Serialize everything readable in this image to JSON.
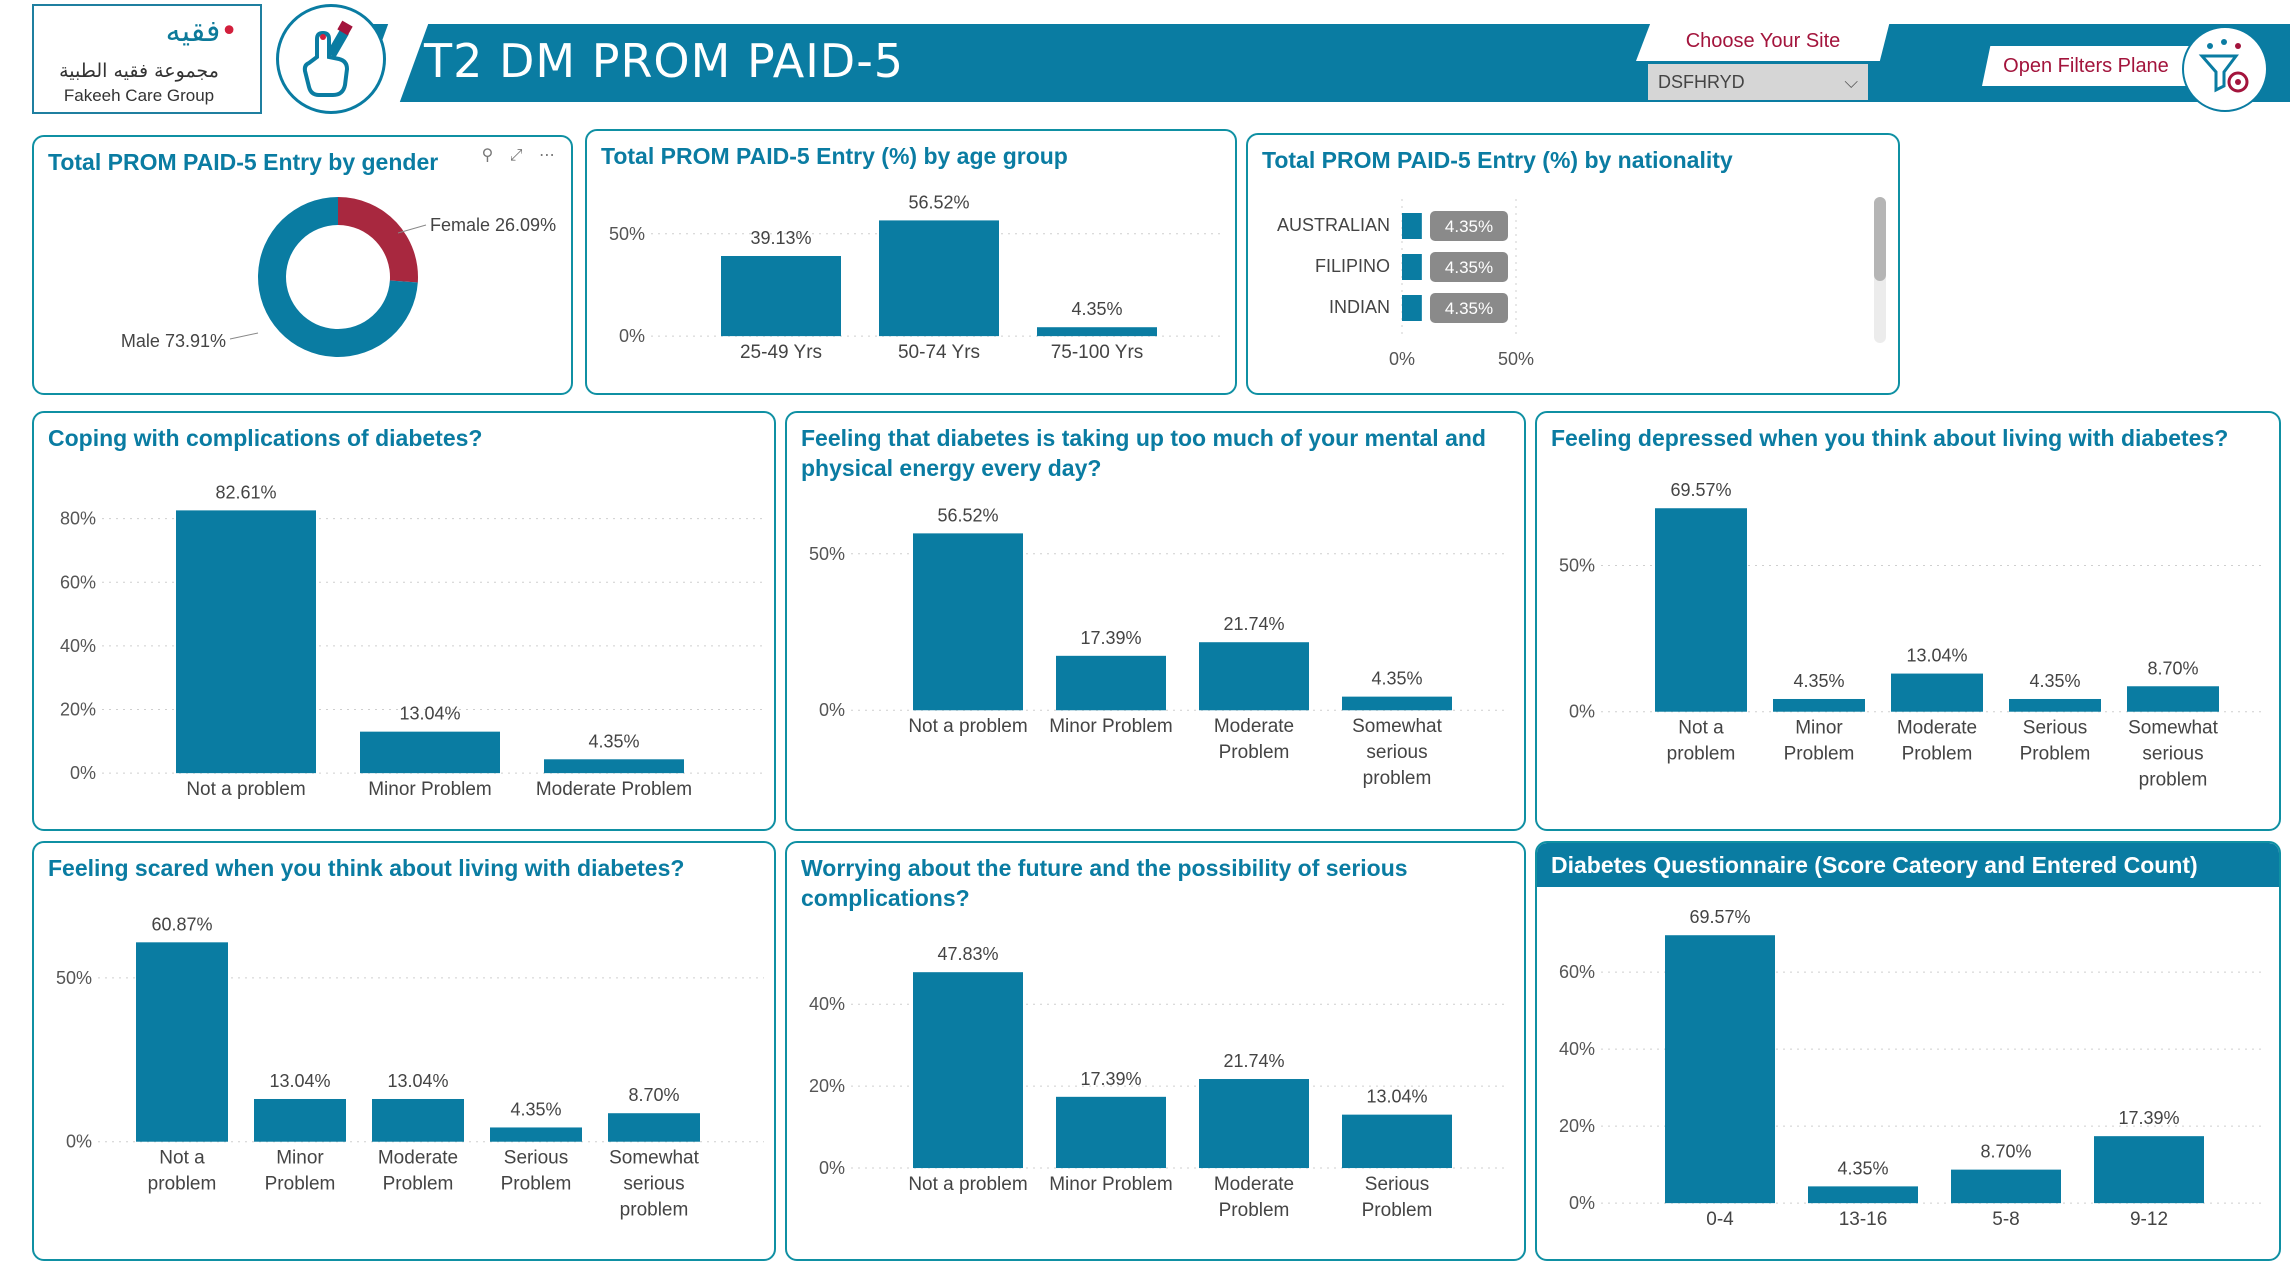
{
  "brand": {
    "logo_arabic_mark": "فقيه",
    "group_name_ar": "مجموعة فقيه الطبية",
    "group_name_en": "Fakeeh Care Group",
    "color_primary": "#0a7ca2",
    "color_accent": "#a3143c",
    "color_female": "#a8283f"
  },
  "header": {
    "title": "T2 DM PROM PAID-5",
    "app_icon": "finger-glucose-test-icon",
    "site_label": "Choose Your Site",
    "site_value": "DSFHRYD",
    "filters_label": "Open Filters Plane",
    "filters_icon": "filter-settings-icon"
  },
  "panels": {
    "gender": {
      "title": "Total PROM PAID-5 Entry by gender",
      "toolbar_icons": "⚲ ⤢ ⋯"
    },
    "age": {
      "title": "Total PROM PAID-5 Entry (%) by age group"
    },
    "nationality": {
      "title": "Total PROM PAID-5 Entry (%) by nationality"
    },
    "coping": {
      "title": "Coping with complications of diabetes?"
    },
    "energy": {
      "title": "Feeling that diabetes is taking up too much of your mental and physical energy every day?"
    },
    "depressed": {
      "title": "Feeling depressed when you think about living with diabetes?"
    },
    "scared": {
      "title": "Feeling scared when you think about living with diabetes?"
    },
    "future": {
      "title": "Worrying about the future and the possibility of serious complications?"
    },
    "score": {
      "title": "Diabetes Questionnaire (Score Cateory and Entered Count)"
    }
  },
  "chart_data": [
    {
      "id": "gender",
      "type": "pie",
      "categories": [
        "Female",
        "Male"
      ],
      "values": [
        26.09,
        73.91
      ],
      "labels": [
        "Female 26.09%",
        "Male 73.91%"
      ],
      "colors": [
        "#a8283f",
        "#0a7ca2"
      ]
    },
    {
      "id": "age",
      "type": "bar",
      "categories": [
        "25-49 Yrs",
        "50-74 Yrs",
        "75-100 Yrs"
      ],
      "values": [
        39.13,
        56.52,
        4.35
      ],
      "labels": [
        "39.13%",
        "56.52%",
        "4.35%"
      ],
      "yticks": [
        "0%",
        "50%"
      ],
      "ytick_values": [
        0,
        50
      ],
      "ylim": [
        0,
        60
      ],
      "grid": true
    },
    {
      "id": "nationality",
      "type": "bar",
      "orientation": "horizontal",
      "categories": [
        "AUSTRALIAN",
        "FILIPINO",
        "INDIAN"
      ],
      "values": [
        4.35,
        4.35,
        4.35
      ],
      "labels": [
        "4.35%",
        "4.35%",
        "4.35%"
      ],
      "xticks": [
        "0%",
        "50%"
      ],
      "xtick_values": [
        0,
        50
      ],
      "xlim": [
        0,
        100
      ],
      "grid": true
    },
    {
      "id": "coping",
      "type": "bar",
      "categories": [
        [
          "Not a problem"
        ],
        [
          "Minor Problem"
        ],
        [
          "Moderate Problem"
        ]
      ],
      "values": [
        82.61,
        13.04,
        4.35
      ],
      "labels": [
        "82.61%",
        "13.04%",
        "4.35%"
      ],
      "yticks": [
        "0%",
        "20%",
        "40%",
        "60%",
        "80%"
      ],
      "ytick_values": [
        0,
        20,
        40,
        60,
        80
      ],
      "ylim": [
        0,
        90
      ],
      "grid": true
    },
    {
      "id": "energy",
      "type": "bar",
      "categories": [
        [
          "Not a problem"
        ],
        [
          "Minor Problem"
        ],
        [
          "Moderate",
          "Problem"
        ],
        [
          "Somewhat",
          "serious",
          "problem"
        ]
      ],
      "values": [
        56.52,
        17.39,
        21.74,
        4.35
      ],
      "labels": [
        "56.52%",
        "17.39%",
        "21.74%",
        "4.35%"
      ],
      "yticks": [
        "0%",
        "50%"
      ],
      "ytick_values": [
        0,
        50
      ],
      "ylim": [
        0,
        62
      ],
      "grid": true
    },
    {
      "id": "depressed",
      "type": "bar",
      "categories": [
        [
          "Not a",
          "problem"
        ],
        [
          "Minor",
          "Problem"
        ],
        [
          "Moderate",
          "Problem"
        ],
        [
          "Serious",
          "Problem"
        ],
        [
          "Somewhat",
          "serious",
          "problem"
        ]
      ],
      "values": [
        69.57,
        4.35,
        13.04,
        4.35,
        8.7
      ],
      "labels": [
        "69.57%",
        "4.35%",
        "13.04%",
        "4.35%",
        "8.70%"
      ],
      "yticks": [
        "0%",
        "50%"
      ],
      "ytick_values": [
        0,
        50
      ],
      "ylim": [
        0,
        75
      ],
      "grid": true
    },
    {
      "id": "scared",
      "type": "bar",
      "categories": [
        [
          "Not a",
          "problem"
        ],
        [
          "Minor",
          "Problem"
        ],
        [
          "Moderate",
          "Problem"
        ],
        [
          "Serious",
          "Problem"
        ],
        [
          "Somewhat",
          "serious",
          "problem"
        ]
      ],
      "values": [
        60.87,
        13.04,
        13.04,
        4.35,
        8.7
      ],
      "labels": [
        "60.87%",
        "13.04%",
        "13.04%",
        "4.35%",
        "8.70%"
      ],
      "yticks": [
        "0%",
        "50%"
      ],
      "ytick_values": [
        0,
        50
      ],
      "ylim": [
        0,
        68
      ],
      "grid": true
    },
    {
      "id": "future",
      "type": "bar",
      "categories": [
        [
          "Not a problem"
        ],
        [
          "Minor Problem"
        ],
        [
          "Moderate",
          "Problem"
        ],
        [
          "Serious",
          "Problem"
        ]
      ],
      "values": [
        47.83,
        17.39,
        21.74,
        13.04
      ],
      "labels": [
        "47.83%",
        "17.39%",
        "21.74%",
        "13.04%"
      ],
      "yticks": [
        "0%",
        "20%",
        "40%"
      ],
      "ytick_values": [
        0,
        20,
        40
      ],
      "ylim": [
        0,
        53
      ],
      "grid": true
    },
    {
      "id": "score",
      "type": "bar",
      "categories": [
        [
          "0-4"
        ],
        [
          "13-16"
        ],
        [
          "5-8"
        ],
        [
          "9-12"
        ]
      ],
      "values": [
        69.57,
        4.35,
        8.7,
        17.39
      ],
      "labels": [
        "69.57%",
        "4.35%",
        "8.70%",
        "17.39%"
      ],
      "yticks": [
        "0%",
        "20%",
        "40%",
        "60%"
      ],
      "ytick_values": [
        0,
        20,
        40,
        60
      ],
      "ylim": [
        0,
        72
      ],
      "grid": true
    }
  ]
}
